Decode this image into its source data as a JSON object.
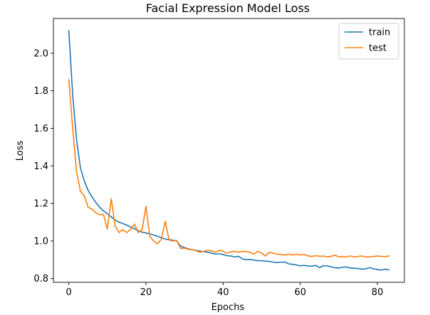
{
  "chart_data": {
    "type": "line",
    "title": "Facial Expression Model Loss",
    "xlabel": "Epochs",
    "ylabel": "Loss",
    "xlim": [
      -4,
      87
    ],
    "ylim": [
      0.78,
      2.185
    ],
    "xticks": [
      0,
      20,
      40,
      60,
      80
    ],
    "yticks": [
      0.8,
      1.0,
      1.2,
      1.4,
      1.6,
      1.8,
      2.0
    ],
    "xtick_labels": [
      "0",
      "20",
      "40",
      "60",
      "80"
    ],
    "ytick_labels": [
      "0.8",
      "1.0",
      "1.2",
      "1.4",
      "1.6",
      "1.8",
      "2.0"
    ],
    "grid": false,
    "legend": "top-right",
    "series": [
      {
        "name": "train",
        "color": "#1f77b4",
        "x": [
          0,
          1,
          2,
          3,
          4,
          5,
          6,
          7,
          8,
          9,
          10,
          11,
          12,
          13,
          14,
          15,
          16,
          17,
          18,
          19,
          20,
          21,
          22,
          23,
          24,
          25,
          26,
          27,
          28,
          29,
          30,
          31,
          32,
          33,
          34,
          35,
          36,
          37,
          38,
          39,
          40,
          41,
          42,
          43,
          44,
          45,
          46,
          47,
          48,
          49,
          50,
          51,
          52,
          53,
          54,
          55,
          56,
          57,
          58,
          59,
          60,
          61,
          62,
          63,
          64,
          65,
          66,
          67,
          68,
          69,
          70,
          71,
          72,
          73,
          74,
          75,
          76,
          77,
          78,
          79,
          80,
          81,
          82,
          83
        ],
        "values": [
          2.12,
          1.78,
          1.54,
          1.39,
          1.32,
          1.27,
          1.235,
          1.205,
          1.18,
          1.16,
          1.145,
          1.128,
          1.112,
          1.1,
          1.093,
          1.085,
          1.075,
          1.065,
          1.055,
          1.047,
          1.043,
          1.038,
          1.032,
          1.025,
          1.017,
          1.01,
          1.007,
          1.004,
          1.0,
          0.972,
          0.965,
          0.958,
          0.953,
          0.95,
          0.946,
          0.943,
          0.94,
          0.935,
          0.93,
          0.932,
          0.928,
          0.922,
          0.92,
          0.915,
          0.918,
          0.905,
          0.9,
          0.902,
          0.898,
          0.895,
          0.895,
          0.893,
          0.891,
          0.887,
          0.885,
          0.887,
          0.888,
          0.878,
          0.876,
          0.872,
          0.868,
          0.87,
          0.867,
          0.866,
          0.87,
          0.858,
          0.868,
          0.868,
          0.862,
          0.858,
          0.856,
          0.86,
          0.862,
          0.856,
          0.855,
          0.853,
          0.85,
          0.852,
          0.858,
          0.852,
          0.848,
          0.845,
          0.85,
          0.846
        ]
      },
      {
        "name": "test",
        "color": "#ff7f0e",
        "x": [
          0,
          1,
          2,
          3,
          4,
          5,
          6,
          7,
          8,
          9,
          10,
          11,
          12,
          13,
          14,
          15,
          16,
          17,
          18,
          19,
          20,
          21,
          22,
          23,
          24,
          25,
          26,
          27,
          28,
          29,
          30,
          31,
          32,
          33,
          34,
          35,
          36,
          37,
          38,
          39,
          40,
          41,
          42,
          43,
          44,
          45,
          46,
          47,
          48,
          49,
          50,
          51,
          52,
          53,
          54,
          55,
          56,
          57,
          58,
          59,
          60,
          61,
          62,
          63,
          64,
          65,
          66,
          67,
          68,
          69,
          70,
          71,
          72,
          73,
          74,
          75,
          76,
          77,
          78,
          79,
          80,
          81,
          82,
          83
        ],
        "values": [
          1.86,
          1.6,
          1.37,
          1.265,
          1.24,
          1.18,
          1.17,
          1.15,
          1.14,
          1.14,
          1.065,
          1.225,
          1.08,
          1.045,
          1.06,
          1.045,
          1.06,
          1.09,
          1.045,
          1.06,
          1.185,
          1.025,
          1.0,
          0.985,
          1.01,
          1.105,
          1.005,
          1.0,
          1.003,
          0.96,
          0.962,
          0.955,
          0.955,
          0.948,
          0.94,
          0.945,
          0.95,
          0.948,
          0.94,
          0.95,
          0.945,
          0.935,
          0.942,
          0.945,
          0.94,
          0.945,
          0.943,
          0.94,
          0.93,
          0.945,
          0.935,
          0.92,
          0.94,
          0.935,
          0.93,
          0.928,
          0.925,
          0.93,
          0.925,
          0.93,
          0.925,
          0.928,
          0.92,
          0.918,
          0.922,
          0.918,
          0.92,
          0.915,
          0.918,
          0.925,
          0.915,
          0.918,
          0.915,
          0.92,
          0.915,
          0.918,
          0.92,
          0.915,
          0.915,
          0.918,
          0.92,
          0.918,
          0.917,
          0.92
        ]
      }
    ]
  }
}
